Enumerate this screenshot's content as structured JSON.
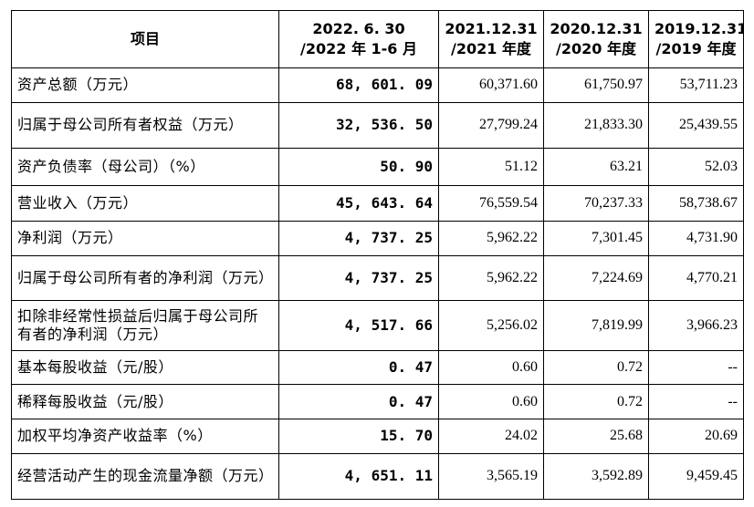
{
  "table": {
    "headers": [
      "项目",
      "2022. 6. 30\n/2022 年 1-6 月",
      "2021.12.31\n/2021 年度",
      "2020.12.31\n/2020 年度",
      "2019.12.31\n/2019 年度"
    ],
    "header_lines": [
      [
        "项目"
      ],
      [
        "2022. 6. 30",
        "/2022 年 1-6 月"
      ],
      [
        "2021.12.31",
        "/2021 年度"
      ],
      [
        "2020.12.31",
        "/2020 年度"
      ],
      [
        "2019.12.31",
        "/2019 年度"
      ]
    ],
    "rows": [
      {
        "label": "资产总额（万元）",
        "values": [
          "68, 601. 09",
          "60,371.60",
          "61,750.97",
          "53,711.23"
        ]
      },
      {
        "label": "归属于母公司所有者权益（万元）",
        "values": [
          "32, 536. 50",
          "27,799.24",
          "21,833.30",
          "25,439.55"
        ]
      },
      {
        "label": "资产负债率（母公司）（%）",
        "values": [
          "50. 90",
          "51.12",
          "63.21",
          "52.03"
        ]
      },
      {
        "label": "营业收入（万元）",
        "values": [
          "45, 643. 64",
          "76,559.54",
          "70,237.33",
          "58,738.67"
        ]
      },
      {
        "label": "净利润（万元）",
        "values": [
          "4, 737. 25",
          "5,962.22",
          "7,301.45",
          "4,731.90"
        ]
      },
      {
        "label": "归属于母公司所有者的净利润（万元）",
        "values": [
          "4, 737. 25",
          "5,962.22",
          "7,224.69",
          "4,770.21"
        ]
      },
      {
        "label": "扣除非经常性损益后归属于母公司所有者的净利润（万元）",
        "values": [
          "4, 517. 66",
          "5,256.02",
          "7,819.99",
          "3,966.23"
        ]
      },
      {
        "label": "基本每股收益（元/股）",
        "values": [
          "0. 47",
          "0.60",
          "0.72",
          "--"
        ]
      },
      {
        "label": "稀释每股收益（元/股）",
        "values": [
          "0. 47",
          "0.60",
          "0.72",
          "--"
        ]
      },
      {
        "label": "加权平均净资产收益率（%）",
        "values": [
          "15. 70",
          "24.02",
          "25.68",
          "20.69"
        ]
      },
      {
        "label": "经营活动产生的现金流量净额（万元）",
        "values": [
          "4, 651. 11",
          "3,565.19",
          "3,592.89",
          "9,459.45"
        ]
      }
    ]
  }
}
